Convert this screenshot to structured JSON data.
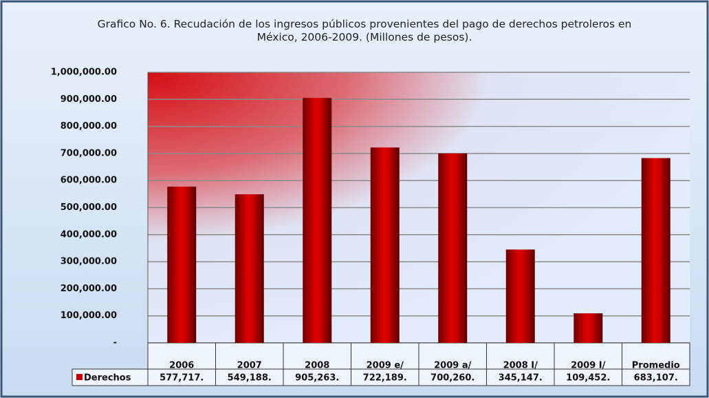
{
  "chart_data": {
    "type": "bar",
    "title": "Grafico No. 6. Recudación de los ingresos públicos provenientes del pago de derechos petroleros en México, 2006-2009. (Millones de pesos).",
    "categories": [
      "2006",
      "2007",
      "2008",
      "2009 e/",
      "2009 a/",
      "2008 I/",
      "2009 I/",
      "Promedio"
    ],
    "series": [
      {
        "name": "Derechos",
        "color": "#cc0000",
        "values": [
          577717,
          549188,
          905263,
          722189,
          700260,
          345147,
          109452,
          683107
        ],
        "value_labels": [
          "577,717.",
          "549,188.",
          "905,263.",
          "722,189.",
          "700,260.",
          "345,147.",
          "109,452.",
          "683,107."
        ]
      }
    ],
    "ylim": [
      0,
      1000000
    ],
    "yticks": [
      {
        "value": 0,
        "label": "-"
      },
      {
        "value": 100000,
        "label": "100,000.00"
      },
      {
        "value": 200000,
        "label": "200,000.00"
      },
      {
        "value": 300000,
        "label": "300,000.00"
      },
      {
        "value": 400000,
        "label": "400,000.00"
      },
      {
        "value": 500000,
        "label": "500,000.00"
      },
      {
        "value": 600000,
        "label": "600,000.00"
      },
      {
        "value": 700000,
        "label": "700,000.00"
      },
      {
        "value": 800000,
        "label": "800,000.00"
      },
      {
        "value": 900000,
        "label": "900,000.00"
      },
      {
        "value": 1000000,
        "label": "1,000,000.00"
      }
    ],
    "grid": true
  }
}
